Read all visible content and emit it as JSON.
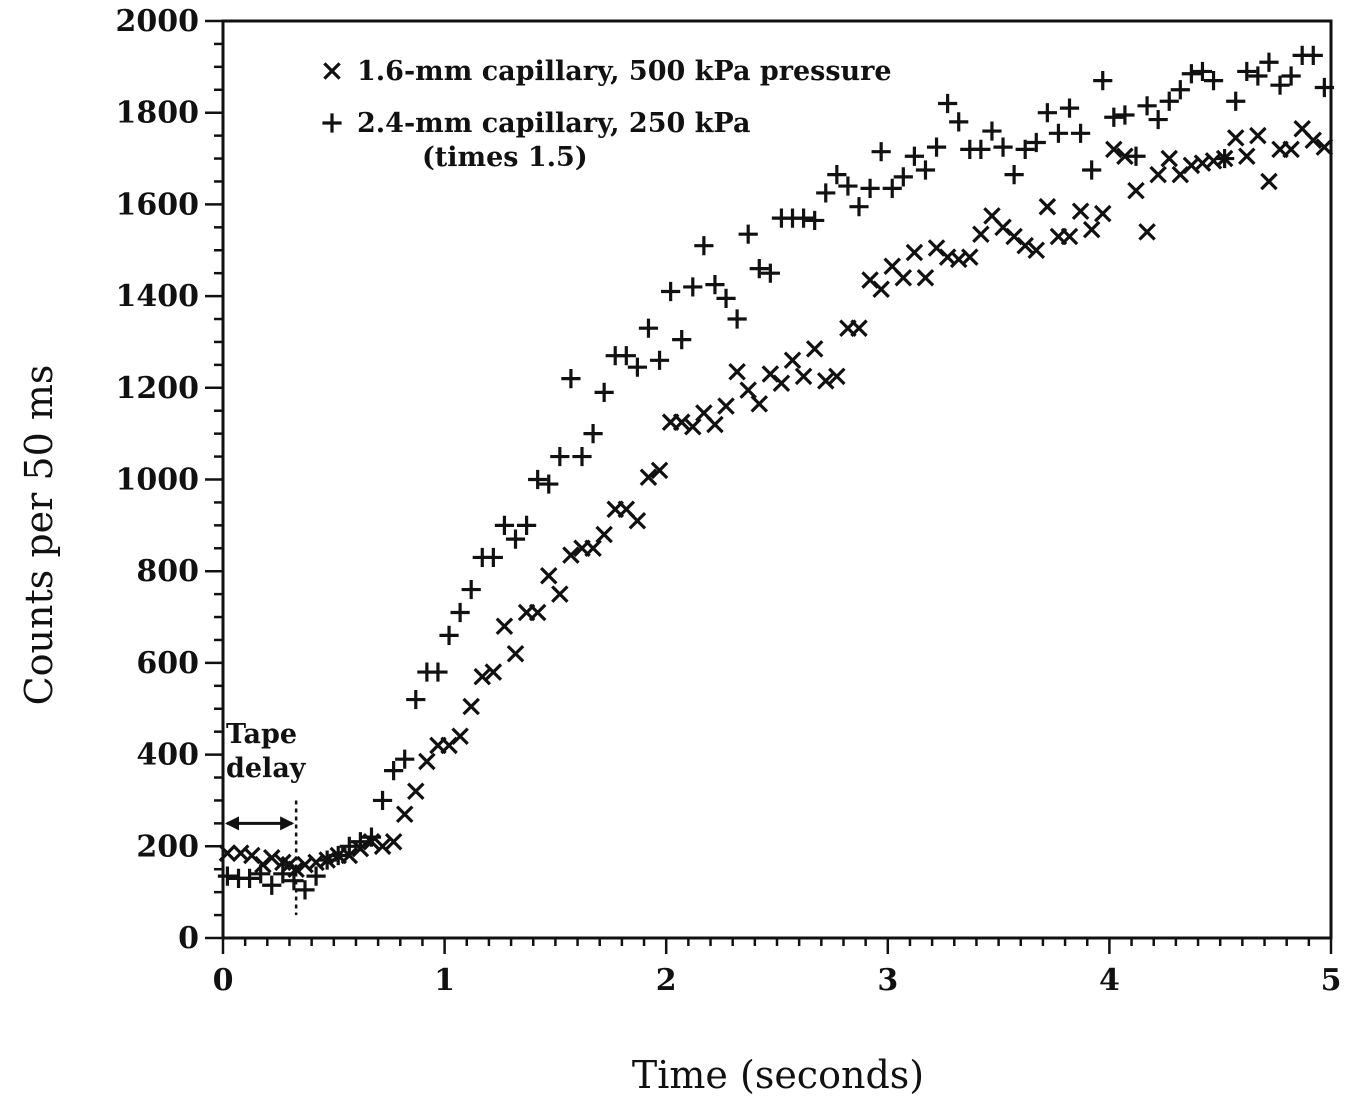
{
  "chart_data": {
    "type": "scatter",
    "title": "",
    "xlabel": "Time (seconds)",
    "ylabel": "Counts per 50 ms",
    "xlim": [
      0,
      5
    ],
    "ylim": [
      0,
      2000
    ],
    "x_ticks": [
      "0",
      "1",
      "2",
      "3",
      "4",
      "5"
    ],
    "y_ticks": [
      "0",
      "200",
      "400",
      "600",
      "800",
      "1000",
      "1200",
      "1400",
      "1600",
      "1800",
      "2000"
    ],
    "grid": false,
    "legend": {
      "placement": "top-left",
      "entries": [
        {
          "marker": "x",
          "text": "1.6-mm capillary, 500 kPa pressure"
        },
        {
          "marker": "+",
          "text": "2.4-mm capillary, 250 kPa",
          "subtext": "(times 1.5)"
        }
      ]
    },
    "annotation": {
      "text_line1": "Tape",
      "text_line2": "delay",
      "x_start": 0,
      "x_end": 0.33,
      "y_arrow": 250
    },
    "series": [
      {
        "name": "1.6-mm capillary, 500 kPa pressure",
        "marker": "x",
        "points": [
          [
            0.02,
            185
          ],
          [
            0.08,
            185
          ],
          [
            0.13,
            180
          ],
          [
            0.18,
            160
          ],
          [
            0.22,
            175
          ],
          [
            0.27,
            165
          ],
          [
            0.3,
            160
          ],
          [
            0.33,
            150
          ],
          [
            0.37,
            160
          ],
          [
            0.42,
            165
          ],
          [
            0.47,
            170
          ],
          [
            0.52,
            180
          ],
          [
            0.57,
            180
          ],
          [
            0.62,
            195
          ],
          [
            0.67,
            210
          ],
          [
            0.72,
            200
          ],
          [
            0.77,
            210
          ],
          [
            0.82,
            270
          ],
          [
            0.87,
            320
          ],
          [
            0.92,
            385
          ],
          [
            0.97,
            420
          ],
          [
            1.02,
            420
          ],
          [
            1.07,
            440
          ],
          [
            1.12,
            505
          ],
          [
            1.17,
            570
          ],
          [
            1.22,
            580
          ],
          [
            1.27,
            680
          ],
          [
            1.32,
            620
          ],
          [
            1.37,
            710
          ],
          [
            1.42,
            710
          ],
          [
            1.47,
            790
          ],
          [
            1.52,
            750
          ],
          [
            1.57,
            835
          ],
          [
            1.62,
            850
          ],
          [
            1.67,
            850
          ],
          [
            1.72,
            880
          ],
          [
            1.77,
            935
          ],
          [
            1.82,
            935
          ],
          [
            1.87,
            910
          ],
          [
            1.92,
            1005
          ],
          [
            1.97,
            1020
          ],
          [
            2.02,
            1125
          ],
          [
            2.07,
            1125
          ],
          [
            2.12,
            1115
          ],
          [
            2.17,
            1145
          ],
          [
            2.22,
            1120
          ],
          [
            2.27,
            1160
          ],
          [
            2.32,
            1235
          ],
          [
            2.37,
            1195
          ],
          [
            2.42,
            1165
          ],
          [
            2.47,
            1230
          ],
          [
            2.52,
            1210
          ],
          [
            2.57,
            1260
          ],
          [
            2.62,
            1225
          ],
          [
            2.67,
            1285
          ],
          [
            2.72,
            1215
          ],
          [
            2.77,
            1225
          ],
          [
            2.82,
            1330
          ],
          [
            2.87,
            1330
          ],
          [
            2.92,
            1435
          ],
          [
            2.97,
            1415
          ],
          [
            3.02,
            1465
          ],
          [
            3.07,
            1440
          ],
          [
            3.12,
            1495
          ],
          [
            3.17,
            1440
          ],
          [
            3.22,
            1505
          ],
          [
            3.27,
            1485
          ],
          [
            3.32,
            1480
          ],
          [
            3.37,
            1485
          ],
          [
            3.42,
            1535
          ],
          [
            3.47,
            1575
          ],
          [
            3.52,
            1550
          ],
          [
            3.57,
            1530
          ],
          [
            3.62,
            1510
          ],
          [
            3.67,
            1500
          ],
          [
            3.72,
            1595
          ],
          [
            3.77,
            1530
          ],
          [
            3.82,
            1530
          ],
          [
            3.87,
            1585
          ],
          [
            3.92,
            1545
          ],
          [
            3.97,
            1580
          ],
          [
            4.02,
            1720
          ],
          [
            4.07,
            1705
          ],
          [
            4.12,
            1630
          ],
          [
            4.17,
            1540
          ],
          [
            4.22,
            1665
          ],
          [
            4.27,
            1700
          ],
          [
            4.32,
            1665
          ],
          [
            4.37,
            1685
          ],
          [
            4.42,
            1690
          ],
          [
            4.47,
            1695
          ],
          [
            4.52,
            1700
          ],
          [
            4.57,
            1745
          ],
          [
            4.62,
            1705
          ],
          [
            4.67,
            1750
          ],
          [
            4.72,
            1650
          ],
          [
            4.77,
            1720
          ],
          [
            4.82,
            1720
          ],
          [
            4.87,
            1765
          ],
          [
            4.92,
            1740
          ],
          [
            4.97,
            1725
          ]
        ]
      },
      {
        "name": "2.4-mm capillary, 250 kPa (times 1.5)",
        "marker": "+",
        "points": [
          [
            0.02,
            135
          ],
          [
            0.07,
            130
          ],
          [
            0.12,
            130
          ],
          [
            0.17,
            140
          ],
          [
            0.22,
            115
          ],
          [
            0.27,
            140
          ],
          [
            0.32,
            125
          ],
          [
            0.37,
            105
          ],
          [
            0.42,
            135
          ],
          [
            0.47,
            170
          ],
          [
            0.52,
            180
          ],
          [
            0.57,
            200
          ],
          [
            0.62,
            210
          ],
          [
            0.67,
            220
          ],
          [
            0.72,
            300
          ],
          [
            0.77,
            365
          ],
          [
            0.82,
            390
          ],
          [
            0.87,
            520
          ],
          [
            0.92,
            580
          ],
          [
            0.97,
            580
          ],
          [
            1.02,
            660
          ],
          [
            1.07,
            710
          ],
          [
            1.12,
            760
          ],
          [
            1.17,
            830
          ],
          [
            1.22,
            830
          ],
          [
            1.27,
            900
          ],
          [
            1.32,
            870
          ],
          [
            1.37,
            900
          ],
          [
            1.42,
            1000
          ],
          [
            1.47,
            990
          ],
          [
            1.52,
            1050
          ],
          [
            1.57,
            1220
          ],
          [
            1.62,
            1050
          ],
          [
            1.67,
            1100
          ],
          [
            1.72,
            1190
          ],
          [
            1.77,
            1270
          ],
          [
            1.82,
            1270
          ],
          [
            1.87,
            1245
          ],
          [
            1.92,
            1330
          ],
          [
            1.97,
            1260
          ],
          [
            2.02,
            1410
          ],
          [
            2.07,
            1305
          ],
          [
            2.12,
            1420
          ],
          [
            2.17,
            1510
          ],
          [
            2.22,
            1425
          ],
          [
            2.27,
            1395
          ],
          [
            2.32,
            1350
          ],
          [
            2.37,
            1535
          ],
          [
            2.42,
            1460
          ],
          [
            2.47,
            1450
          ],
          [
            2.52,
            1570
          ],
          [
            2.57,
            1570
          ],
          [
            2.62,
            1570
          ],
          [
            2.67,
            1565
          ],
          [
            2.72,
            1625
          ],
          [
            2.77,
            1665
          ],
          [
            2.82,
            1640
          ],
          [
            2.87,
            1595
          ],
          [
            2.92,
            1635
          ],
          [
            2.97,
            1715
          ],
          [
            3.02,
            1635
          ],
          [
            3.07,
            1660
          ],
          [
            3.12,
            1705
          ],
          [
            3.17,
            1675
          ],
          [
            3.22,
            1725
          ],
          [
            3.27,
            1820
          ],
          [
            3.32,
            1780
          ],
          [
            3.37,
            1720
          ],
          [
            3.42,
            1720
          ],
          [
            3.47,
            1760
          ],
          [
            3.52,
            1725
          ],
          [
            3.57,
            1665
          ],
          [
            3.62,
            1720
          ],
          [
            3.67,
            1735
          ],
          [
            3.72,
            1800
          ],
          [
            3.77,
            1755
          ],
          [
            3.82,
            1810
          ],
          [
            3.87,
            1755
          ],
          [
            3.92,
            1675
          ],
          [
            3.97,
            1870
          ],
          [
            4.02,
            1790
          ],
          [
            4.07,
            1795
          ],
          [
            4.12,
            1705
          ],
          [
            4.17,
            1815
          ],
          [
            4.22,
            1785
          ],
          [
            4.27,
            1825
          ],
          [
            4.32,
            1850
          ],
          [
            4.37,
            1885
          ],
          [
            4.42,
            1890
          ],
          [
            4.47,
            1870
          ],
          [
            4.52,
            1700
          ],
          [
            4.57,
            1825
          ],
          [
            4.62,
            1890
          ],
          [
            4.67,
            1880
          ],
          [
            4.72,
            1910
          ],
          [
            4.77,
            1860
          ],
          [
            4.82,
            1880
          ],
          [
            4.87,
            1925
          ],
          [
            4.92,
            1925
          ],
          [
            4.97,
            1855
          ]
        ]
      }
    ]
  }
}
